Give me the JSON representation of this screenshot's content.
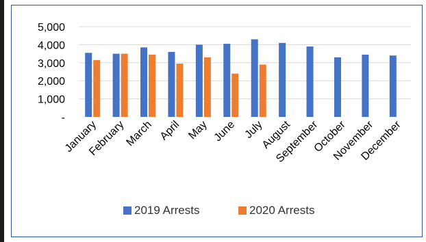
{
  "chart_data": {
    "type": "bar",
    "categories": [
      "January",
      "February",
      "March",
      "April",
      "May",
      "June",
      "July",
      "August",
      "September",
      "October",
      "November",
      "December"
    ],
    "series": [
      {
        "name": "2019 Arrests",
        "color": "#4472c4",
        "values": [
          3550,
          3500,
          3850,
          3600,
          4000,
          4050,
          4300,
          4100,
          3900,
          3300,
          3450,
          3400
        ]
      },
      {
        "name": "2020 Arrests",
        "color": "#ed7d31",
        "values": [
          3150,
          3500,
          3450,
          2950,
          3300,
          2400,
          2900,
          null,
          null,
          null,
          null,
          null
        ]
      }
    ],
    "ylim": [
      0,
      5000
    ],
    "yticks": [
      0,
      1000,
      2000,
      3000,
      4000,
      5000
    ],
    "ytick_labels": [
      "-",
      "1,000",
      "2,000",
      "3,000",
      "4,000",
      "5,000"
    ],
    "grid": true,
    "legend_position": "bottom",
    "title": "",
    "xlabel": "",
    "ylabel": ""
  }
}
